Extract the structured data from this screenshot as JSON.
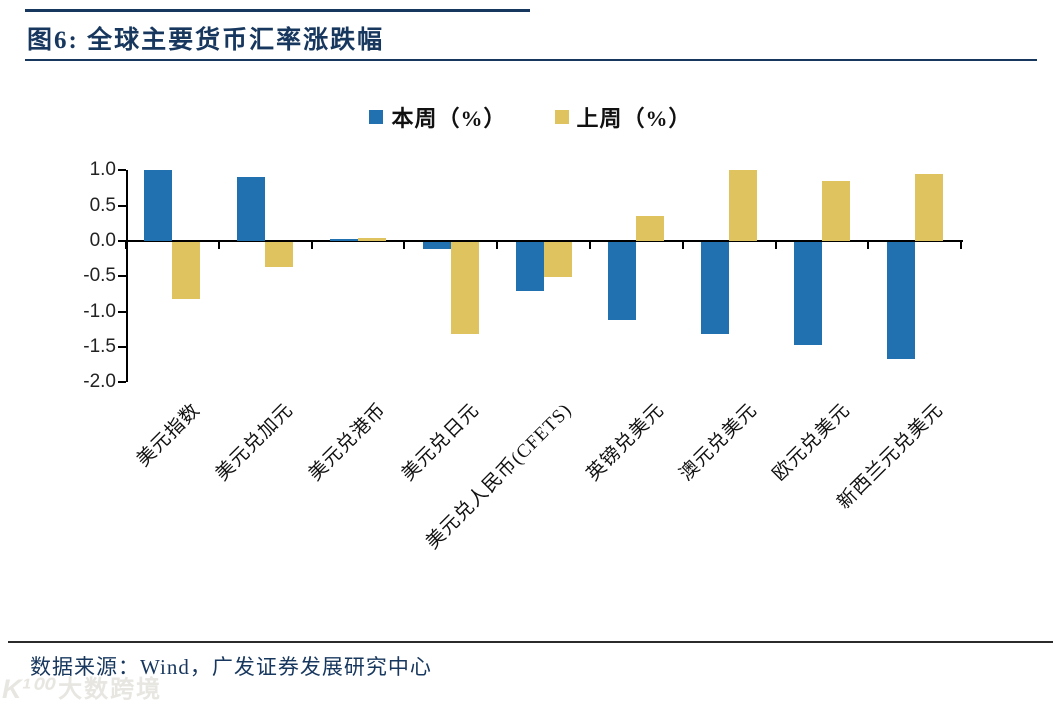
{
  "page": {
    "title": "图6:  全球主要货币汇率涨跌幅",
    "footer_source": "数据来源：Wind，广发证券发展研究中心",
    "watermark_logo": "K¹⁰⁰",
    "watermark_text": "大数跨境",
    "accent_color": "#17375E"
  },
  "chart_data": {
    "type": "bar",
    "title": "全球主要货币汇率涨跌幅",
    "categories": [
      "美元指数",
      "美元兑加元",
      "美元兑港币",
      "美元兑日元",
      "美元兑人民币(CFETS)",
      "英镑兑美元",
      "澳元兑美元",
      "欧元兑美元",
      "新西兰元兑美元"
    ],
    "series": [
      {
        "name": "本周（%）",
        "color": "#2171B0",
        "values": [
          1.0,
          0.9,
          0.03,
          -0.1,
          -0.7,
          -1.1,
          -1.3,
          -1.45,
          -1.65
        ]
      },
      {
        "name": "上周（%）",
        "color": "#DFC35F",
        "values": [
          -0.8,
          -0.35,
          0.04,
          -1.3,
          -0.5,
          0.35,
          1.0,
          0.85,
          0.95
        ]
      }
    ],
    "xlabel": "",
    "ylabel": "",
    "ylim": [
      -2.0,
      1.0
    ],
    "yticks": [
      1.0,
      0.5,
      0.0,
      -0.5,
      -1.0,
      -1.5,
      -2.0
    ],
    "grid": false,
    "legend_position": "top-center"
  }
}
